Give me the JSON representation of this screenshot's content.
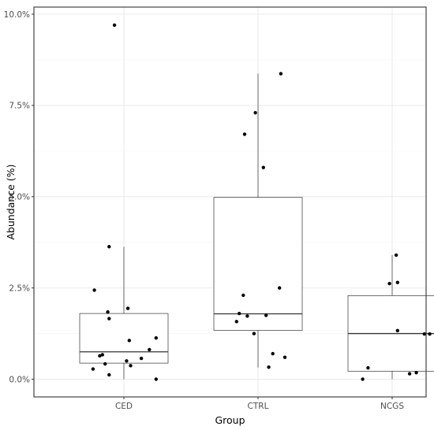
{
  "chart_data": {
    "type": "boxplot",
    "title": "",
    "xlabel": "Group",
    "ylabel": "Abundance (%)",
    "categories": [
      "CED",
      "CTRL",
      "NCGS"
    ],
    "y_ticks": [
      {
        "value": 0.0,
        "label": "0.0%"
      },
      {
        "value": 2.5,
        "label": "2.5%"
      },
      {
        "value": 5.0,
        "label": "5.0%"
      },
      {
        "value": 7.5,
        "label": "7.5%"
      },
      {
        "value": 10.0,
        "label": "10.0%"
      }
    ],
    "ylim": [
      -0.45,
      10.1
    ],
    "grid": true,
    "boxes": [
      {
        "category": "CED",
        "min": 0.0,
        "q1": 0.44,
        "median": 0.75,
        "q3": 1.8,
        "max": 3.63
      },
      {
        "category": "CTRL",
        "min": 0.32,
        "q1": 1.34,
        "median": 1.79,
        "q3": 4.98,
        "max": 8.37
      },
      {
        "category": "NCGS",
        "min": 0.0,
        "q1": 0.22,
        "median": 1.25,
        "q3": 2.29,
        "max": 3.4
      }
    ],
    "points": [
      {
        "category": "CED",
        "x": 0.93,
        "y": 9.7
      },
      {
        "category": "CED",
        "x": 0.89,
        "y": 3.63
      },
      {
        "category": "CED",
        "x": 0.78,
        "y": 2.44
      },
      {
        "category": "CED",
        "x": 1.03,
        "y": 1.94
      },
      {
        "category": "CED",
        "x": 0.88,
        "y": 1.84
      },
      {
        "category": "CED",
        "x": 0.89,
        "y": 1.66
      },
      {
        "category": "CED",
        "x": 1.24,
        "y": 1.13
      },
      {
        "category": "CED",
        "x": 1.04,
        "y": 1.06
      },
      {
        "category": "CED",
        "x": 1.19,
        "y": 0.81
      },
      {
        "category": "CED",
        "x": 0.84,
        "y": 0.67
      },
      {
        "category": "CED",
        "x": 0.82,
        "y": 0.64
      },
      {
        "category": "CED",
        "x": 1.13,
        "y": 0.57
      },
      {
        "category": "CED",
        "x": 1.02,
        "y": 0.5
      },
      {
        "category": "CED",
        "x": 0.86,
        "y": 0.42
      },
      {
        "category": "CED",
        "x": 1.05,
        "y": 0.37
      },
      {
        "category": "CED",
        "x": 0.77,
        "y": 0.28
      },
      {
        "category": "CED",
        "x": 0.89,
        "y": 0.12
      },
      {
        "category": "CED",
        "x": 1.24,
        "y": 0.0
      },
      {
        "category": "CTRL",
        "x": 2.17,
        "y": 8.37
      },
      {
        "category": "CTRL",
        "x": 1.98,
        "y": 7.3
      },
      {
        "category": "CTRL",
        "x": 1.9,
        "y": 6.71
      },
      {
        "category": "CTRL",
        "x": 2.04,
        "y": 5.8
      },
      {
        "category": "CTRL",
        "x": 2.16,
        "y": 2.5
      },
      {
        "category": "CTRL",
        "x": 1.89,
        "y": 2.3
      },
      {
        "category": "CTRL",
        "x": 1.86,
        "y": 1.8
      },
      {
        "category": "CTRL",
        "x": 1.92,
        "y": 1.73
      },
      {
        "category": "CTRL",
        "x": 2.06,
        "y": 1.75
      },
      {
        "category": "CTRL",
        "x": 1.84,
        "y": 1.58
      },
      {
        "category": "CTRL",
        "x": 1.97,
        "y": 1.25
      },
      {
        "category": "CTRL",
        "x": 2.11,
        "y": 0.7
      },
      {
        "category": "CTRL",
        "x": 2.2,
        "y": 0.6
      },
      {
        "category": "CTRL",
        "x": 2.08,
        "y": 0.33
      },
      {
        "category": "NCGS",
        "x": 3.03,
        "y": 3.4
      },
      {
        "category": "NCGS",
        "x": 3.04,
        "y": 2.65
      },
      {
        "category": "NCGS",
        "x": 2.98,
        "y": 2.62
      },
      {
        "category": "NCGS",
        "x": 3.04,
        "y": 1.33
      },
      {
        "category": "NCGS",
        "x": 3.24,
        "y": 1.24
      },
      {
        "category": "NCGS",
        "x": 3.28,
        "y": 1.24
      },
      {
        "category": "NCGS",
        "x": 2.82,
        "y": 0.31
      },
      {
        "category": "NCGS",
        "x": 3.18,
        "y": 0.18
      },
      {
        "category": "NCGS",
        "x": 3.13,
        "y": 0.15
      },
      {
        "category": "NCGS",
        "x": 2.78,
        "y": 0.0
      }
    ],
    "colors": {
      "panel_border": "#333333",
      "grid_major": "#ebebeb",
      "grid_minor": "#f4f4f4",
      "box_stroke": "#333333",
      "point": "#000000",
      "tick_text": "#4d4d4d"
    }
  }
}
